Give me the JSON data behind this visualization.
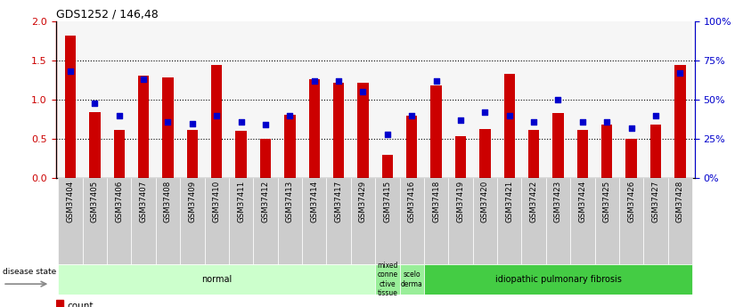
{
  "title": "GDS1252 / 146,48",
  "samples": [
    "GSM37404",
    "GSM37405",
    "GSM37406",
    "GSM37407",
    "GSM37408",
    "GSM37409",
    "GSM37410",
    "GSM37411",
    "GSM37412",
    "GSM37413",
    "GSM37414",
    "GSM37417",
    "GSM37429",
    "GSM37415",
    "GSM37416",
    "GSM37418",
    "GSM37419",
    "GSM37420",
    "GSM37421",
    "GSM37422",
    "GSM37423",
    "GSM37424",
    "GSM37425",
    "GSM37426",
    "GSM37427",
    "GSM37428"
  ],
  "count_values": [
    1.82,
    0.84,
    0.62,
    1.31,
    1.28,
    0.61,
    1.45,
    0.6,
    0.5,
    0.81,
    1.26,
    1.22,
    1.22,
    0.3,
    0.8,
    1.18,
    0.54,
    0.63,
    1.33,
    0.62,
    0.83,
    0.61,
    0.68,
    0.5,
    0.68,
    1.44
  ],
  "percentile_values": [
    0.68,
    0.48,
    0.4,
    0.63,
    0.36,
    0.35,
    0.4,
    0.36,
    0.34,
    0.4,
    0.62,
    0.62,
    0.55,
    0.28,
    0.4,
    0.62,
    0.37,
    0.42,
    0.4,
    0.36,
    0.5,
    0.36,
    0.36,
    0.32,
    0.4,
    0.67
  ],
  "disease_groups": [
    {
      "label": "normal",
      "start": 0,
      "end": 13,
      "color": "#ccffcc"
    },
    {
      "label": "mixed\nconne\nctive\ntissue",
      "start": 13,
      "end": 14,
      "color": "#99ee99"
    },
    {
      "label": "scelo\nderma",
      "start": 14,
      "end": 15,
      "color": "#99ee99"
    },
    {
      "label": "idiopathic pulmonary fibrosis",
      "start": 15,
      "end": 26,
      "color": "#44cc44"
    }
  ],
  "ylim_left": [
    0,
    2.0
  ],
  "ylim_right": [
    0,
    100
  ],
  "bar_color": "#cc0000",
  "dot_color": "#0000cc",
  "bg_color": "#ffffff",
  "left_axis_color": "#cc0000",
  "right_axis_color": "#0000cc",
  "left_ticks": [
    0,
    0.5,
    1.0,
    1.5,
    2.0
  ],
  "right_ticks": [
    0,
    25,
    50,
    75,
    100
  ],
  "dotted_lines": [
    0.5,
    1.0,
    1.5
  ],
  "bar_width": 0.45
}
